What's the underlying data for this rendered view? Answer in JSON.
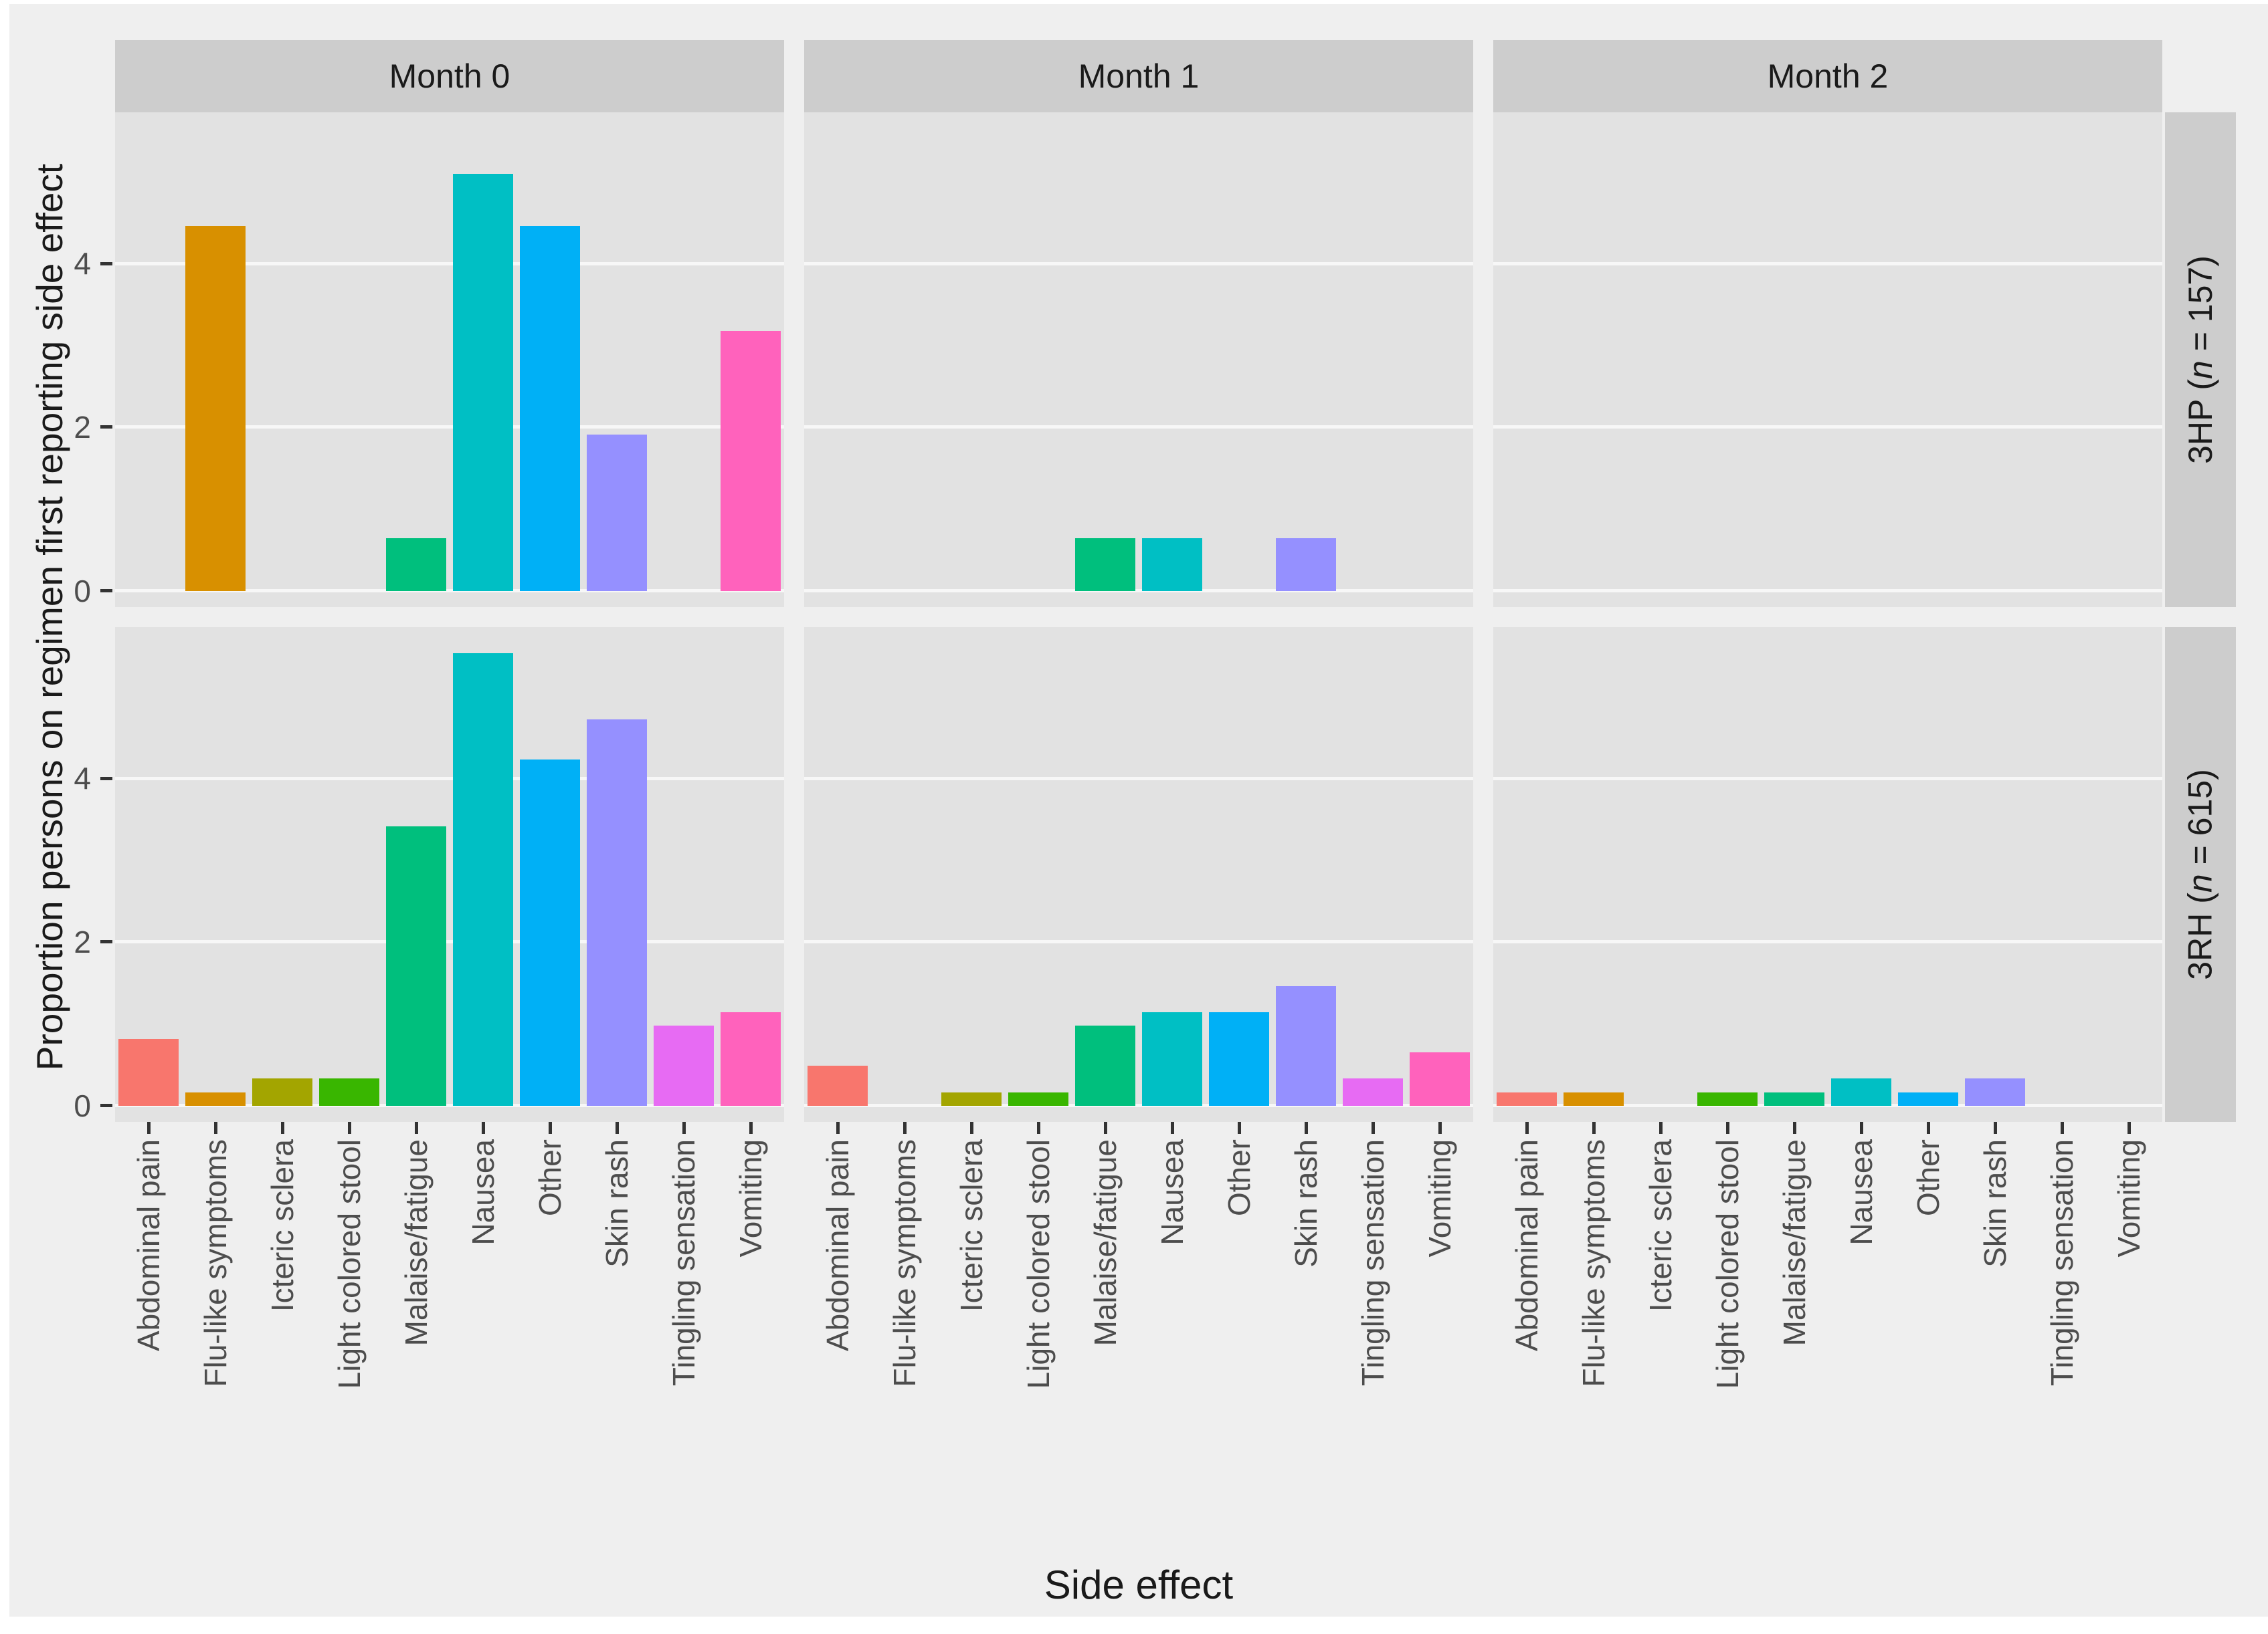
{
  "chart_data": {
    "type": "bar",
    "title": "",
    "xlabel": "Side effect",
    "ylabel": "Proportion persons on regimen first reporting side effect",
    "categories": [
      "Abdominal pain",
      "Flu-like symptoms",
      "Icteric sclera",
      "Light colored stool",
      "Malaise/fatigue",
      "Nausea",
      "Other",
      "Skin rash",
      "Tingling sensation",
      "Vomiting"
    ],
    "col_facets": [
      "Month 0",
      "Month 1",
      "Month 2"
    ],
    "row_facets": [
      {
        "prefix": "3HP (",
        "n": "n",
        "suffix": " = 157)",
        "full": "3HP (n = 157)"
      },
      {
        "prefix": "3RH (",
        "n": "n",
        "suffix": " = 615)",
        "full": "3RH (n = 615)"
      }
    ],
    "y_ticks": [
      "0",
      "2",
      "4"
    ],
    "ylim": [
      -0.2,
      5.85
    ],
    "grid": "major horizontal white gridlines at 0, 2, 4",
    "legend_position": "none",
    "palette": [
      "#F8766D",
      "#D89000",
      "#A3A500",
      "#39B600",
      "#00BF7D",
      "#00BFC4",
      "#00B0F6",
      "#9590FF",
      "#E76BF3",
      "#FF62BC"
    ],
    "panels": [
      {
        "row": "3HP (n = 157)",
        "col": "Month 0",
        "values": [
          0,
          4.46,
          0,
          0,
          0.64,
          5.1,
          4.46,
          1.91,
          0,
          3.18
        ]
      },
      {
        "row": "3HP (n = 157)",
        "col": "Month 1",
        "values": [
          0,
          0,
          0,
          0,
          0.64,
          0.64,
          0,
          0.64,
          0,
          0
        ]
      },
      {
        "row": "3HP (n = 157)",
        "col": "Month 2",
        "values": [
          0,
          0,
          0,
          0,
          0,
          0,
          0,
          0,
          0,
          0
        ]
      },
      {
        "row": "3RH (n = 615)",
        "col": "Month 0",
        "values": [
          0.81,
          0.16,
          0.33,
          0.33,
          3.41,
          5.53,
          4.23,
          4.72,
          0.98,
          1.14
        ]
      },
      {
        "row": "3RH (n = 615)",
        "col": "Month 1",
        "values": [
          0.49,
          0,
          0.16,
          0.16,
          0.98,
          1.14,
          1.14,
          1.46,
          0.33,
          0.65
        ]
      },
      {
        "row": "3RH (n = 615)",
        "col": "Month 2",
        "values": [
          0.16,
          0.16,
          0,
          0.16,
          0.16,
          0.33,
          0.16,
          0.33,
          0,
          0
        ]
      }
    ],
    "colors": {
      "figure_bg": "#EFEFEF",
      "panel_bg": "#E2E2E2",
      "strip_bg": "#CDCDCD",
      "gridline": "#F7F7F7",
      "tick_mark": "#333333",
      "tick_label": "#4D4D4D",
      "title_text": "#1A1A1A"
    }
  }
}
